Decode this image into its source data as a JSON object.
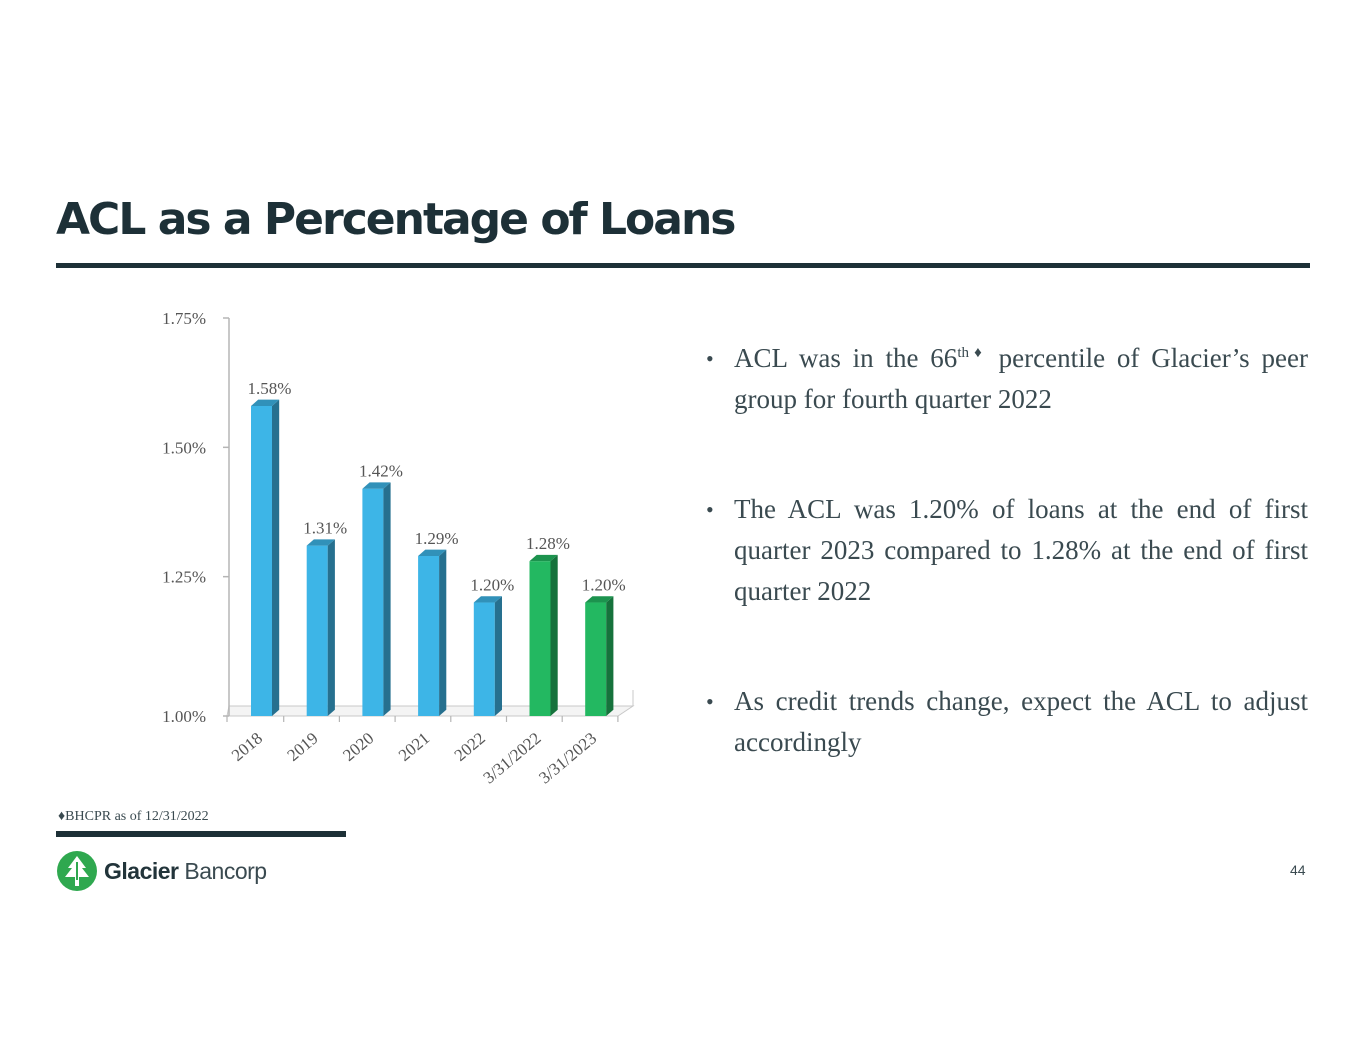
{
  "slide": {
    "title": "ACL as a Percentage of Loans",
    "page_number": "44",
    "footnote_marker": "♦",
    "footnote": "BHCPR as of 12/31/2022",
    "brand": {
      "name_bold": "Glacier",
      "name_light": "Bancorp",
      "logo_icon": "tree-icon",
      "brand_color": "#2fa84f"
    }
  },
  "bullets": [
    {
      "before": "ACL was in the 66",
      "sup": "th♦",
      "after": " percentile of Glacier’s peer group for fourth quarter 2022"
    },
    {
      "before": "The ACL was 1.20% of loans at the end of first quarter 2023 compared to 1.28% at the end of first quarter 2022",
      "sup": "",
      "after": ""
    },
    {
      "before": "As credit trends change, expect the ACL to adjust accordingly",
      "sup": "",
      "after": ""
    }
  ],
  "chart_data": {
    "type": "bar",
    "categories": [
      "2018",
      "2019",
      "2020",
      "2021",
      "2022",
      "3/31/2022",
      "3/31/2023"
    ],
    "values": [
      1.58,
      1.31,
      1.42,
      1.29,
      1.2,
      1.28,
      1.2
    ],
    "data_labels": [
      "1.58%",
      "1.31%",
      "1.42%",
      "1.29%",
      "1.20%",
      "1.28%",
      "1.20%"
    ],
    "bar_colors": [
      "#3db5e7",
      "#3db5e7",
      "#3db5e7",
      "#3db5e7",
      "#3db5e7",
      "#23b861",
      "#23b861"
    ],
    "ylim": [
      1.0,
      1.75
    ],
    "yticks": [
      1.0,
      1.25,
      1.5,
      1.75
    ],
    "ytick_labels": [
      "1.00%",
      "1.25%",
      "1.50%",
      "1.75%"
    ],
    "xlabel": "",
    "ylabel": "",
    "grid": false,
    "style": "3d-bars"
  }
}
